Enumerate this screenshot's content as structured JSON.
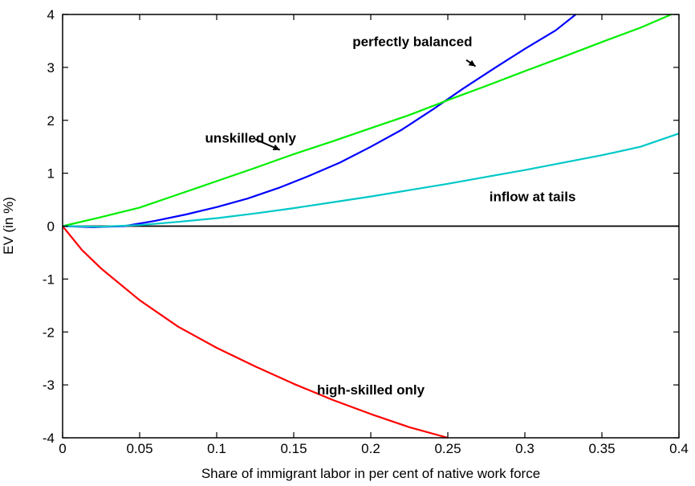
{
  "chart_data": {
    "type": "line",
    "title": "",
    "xlabel": "Share of immigrant labor in per cent of native work force",
    "ylabel": "EV (in %)",
    "xlim": [
      0,
      0.4
    ],
    "ylim": [
      -4,
      4
    ],
    "xticks": [
      0,
      0.05,
      0.1,
      0.15,
      0.2,
      0.25,
      0.3,
      0.35,
      0.4
    ],
    "xtick_labels": [
      "0",
      "0.05",
      "0.1",
      "0.15",
      "0.2",
      "0.25",
      "0.3",
      "0.35",
      "0.4"
    ],
    "yticks": [
      -4,
      -3,
      -2,
      -1,
      0,
      1,
      2,
      3,
      4
    ],
    "ytick_labels": [
      "-4",
      "-3",
      "-2",
      "-1",
      "0",
      "1",
      "2",
      "3",
      "4"
    ],
    "grid": false,
    "legend": "none",
    "zero_line": true,
    "series": [
      {
        "name": "perfectly balanced",
        "color": "#0000ff",
        "x": [
          0,
          0.02,
          0.04,
          0.06,
          0.08,
          0.1,
          0.12,
          0.14,
          0.16,
          0.18,
          0.2,
          0.22,
          0.24,
          0.26,
          0.28,
          0.3,
          0.32,
          0.333
        ],
        "y": [
          0,
          -0.02,
          0.0,
          0.1,
          0.22,
          0.36,
          0.52,
          0.72,
          0.95,
          1.2,
          1.5,
          1.82,
          2.2,
          2.6,
          2.98,
          3.35,
          3.7,
          4.0
        ]
      },
      {
        "name": "unskilled only",
        "color": "#00ee00",
        "x": [
          0,
          0.025,
          0.05,
          0.075,
          0.1,
          0.125,
          0.15,
          0.175,
          0.2,
          0.225,
          0.25,
          0.275,
          0.3,
          0.325,
          0.35,
          0.375,
          0.395
        ],
        "y": [
          0,
          0.17,
          0.35,
          0.6,
          0.85,
          1.1,
          1.36,
          1.6,
          1.85,
          2.1,
          2.38,
          2.65,
          2.93,
          3.2,
          3.48,
          3.75,
          4.0
        ]
      },
      {
        "name": "inflow at tails",
        "color": "#00c8c8",
        "x": [
          0,
          0.025,
          0.05,
          0.075,
          0.1,
          0.125,
          0.15,
          0.175,
          0.2,
          0.225,
          0.25,
          0.275,
          0.3,
          0.325,
          0.35,
          0.375,
          0.4
        ],
        "y": [
          0,
          -0.01,
          0.02,
          0.08,
          0.15,
          0.24,
          0.34,
          0.45,
          0.56,
          0.68,
          0.8,
          0.93,
          1.06,
          1.2,
          1.34,
          1.5,
          1.75
        ]
      },
      {
        "name": "high-skilled only",
        "color": "#ff0000",
        "x": [
          0,
          0.0125,
          0.025,
          0.05,
          0.075,
          0.1,
          0.125,
          0.15,
          0.175,
          0.2,
          0.225,
          0.25
        ],
        "y": [
          0,
          -0.45,
          -0.8,
          -1.4,
          -1.9,
          -2.3,
          -2.65,
          -2.98,
          -3.28,
          -3.55,
          -3.8,
          -4.0
        ]
      }
    ],
    "annotations": [
      {
        "text": "perfectly balanced",
        "x": 0.227,
        "y": 3.4
      },
      {
        "text": "unskilled only",
        "x": 0.122,
        "y": 1.58
      },
      {
        "text": "inflow at tails",
        "x": 0.305,
        "y": 0.47
      },
      {
        "text": "high-skilled only",
        "x": 0.2,
        "y": -3.18
      }
    ]
  }
}
